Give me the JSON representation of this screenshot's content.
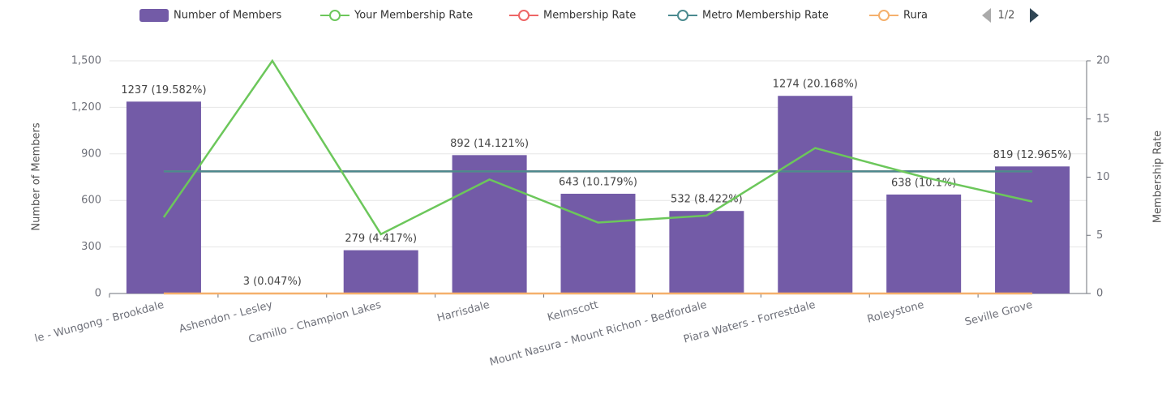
{
  "chart_data": {
    "type": "bar-line",
    "categories": [
      "le - Wungong - Brookdale",
      "Ashendon - Lesley",
      "Camillo - Champion Lakes",
      "Harrisdale",
      "Kelmscott",
      "Mount Nasura - Mount Richon - Bedfordale",
      "Piara Waters - Forrestdale",
      "Roleystone",
      "Seville Grove"
    ],
    "series": [
      {
        "name": "Number of Members",
        "type": "bar",
        "color": "#735ba7",
        "values": [
          1237,
          3,
          279,
          892,
          643,
          532,
          1274,
          638,
          819
        ],
        "value_labels": [
          "1237 (19.582%)",
          "3 (0.047%)",
          "279 (4.417%)",
          "892 (14.121%)",
          "643 (10.179%)",
          "532 (8.422%)",
          "1274 (20.168%)",
          "638 (10.1%)",
          "819 (12.965%)"
        ]
      },
      {
        "name": "Your Membership Rate",
        "type": "line",
        "axis": "y2",
        "color": "#6cc75b",
        "values": [
          6.55,
          20,
          5.1,
          9.8,
          6.1,
          6.7,
          12.5,
          10,
          7.9
        ]
      },
      {
        "name": "Membership Rate",
        "type": "line",
        "axis": "y2",
        "color": "#ee6666",
        "values": [
          10.5,
          10.5,
          10.5,
          10.5,
          10.5,
          10.5,
          10.5,
          10.5,
          10.5
        ]
      },
      {
        "name": "Metro Membership Rate",
        "type": "line",
        "axis": "y2",
        "color": "#4a8a8f",
        "values": [
          10.5,
          10.5,
          10.5,
          10.5,
          10.5,
          10.5,
          10.5,
          10.5,
          10.5
        ]
      },
      {
        "name": "Rural M",
        "type": "line",
        "axis": "y2",
        "color": "#f5b06c",
        "values": [
          0,
          0,
          0,
          0,
          0,
          0,
          0,
          0,
          0
        ]
      }
    ],
    "ylabel": "Number of Members",
    "y2label": "Membership Rate",
    "ylim": [
      0,
      1500
    ],
    "yticks": [
      0,
      300,
      600,
      900,
      {
        "value": 1200,
        "label": "1,200"
      },
      {
        "value": 1500,
        "label": "1,500"
      }
    ],
    "y2lim": [
      0,
      20
    ],
    "y2ticks": [
      0,
      5,
      10,
      15,
      20
    ],
    "legend_page": "1/2",
    "grid": true
  }
}
